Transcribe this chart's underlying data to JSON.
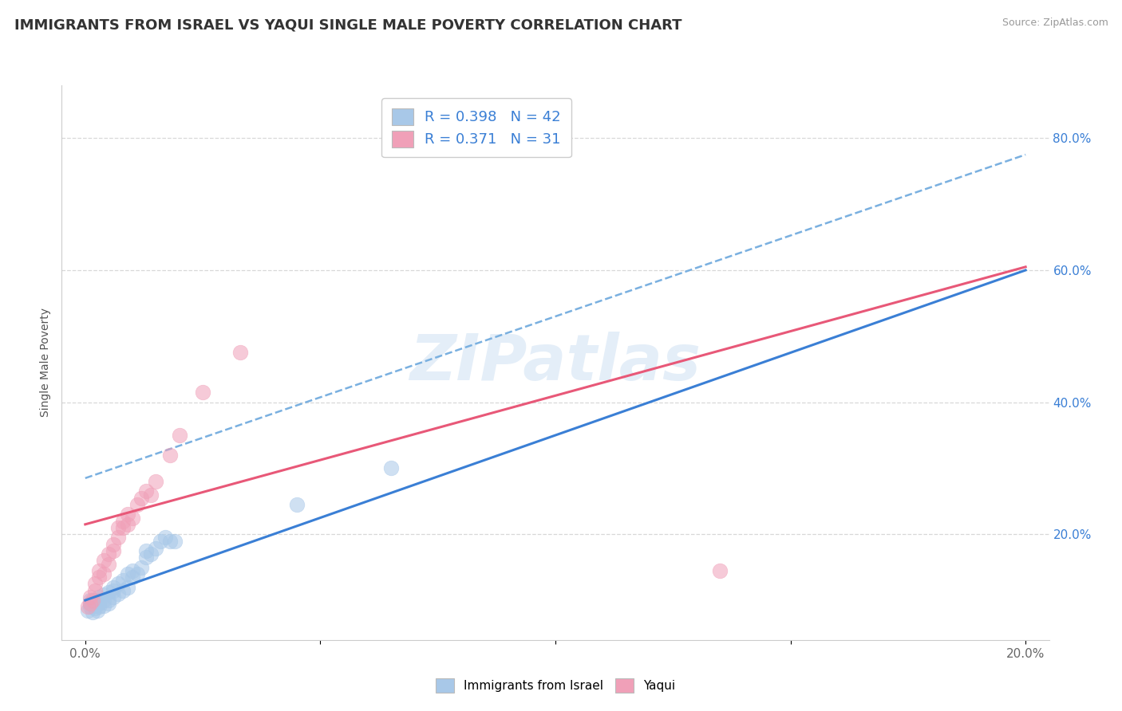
{
  "title": "IMMIGRANTS FROM ISRAEL VS YAQUI SINGLE MALE POVERTY CORRELATION CHART",
  "source_text": "Source: ZipAtlas.com",
  "ylabel": "Single Male Poverty",
  "watermark": "ZIPatlas",
  "xlim": [
    -0.005,
    0.205
  ],
  "ylim": [
    0.04,
    0.88
  ],
  "xticks": [
    0.0,
    0.05,
    0.1,
    0.15,
    0.2
  ],
  "xticklabels": [
    "0.0%",
    "",
    "",
    "",
    "20.0%"
  ],
  "yticks_right": [
    0.2,
    0.4,
    0.6,
    0.8
  ],
  "ytick_right_labels": [
    "20.0%",
    "40.0%",
    "60.0%",
    "80.0%"
  ],
  "legend1_label": "R = 0.398   N = 42",
  "legend2_label": "R = 0.371   N = 31",
  "legend_bottom_label1": "Immigrants from Israel",
  "legend_bottom_label2": "Yaqui",
  "blue_color": "#a8c8e8",
  "pink_color": "#f0a0b8",
  "blue_scatter": [
    [
      0.0005,
      0.085
    ],
    [
      0.001,
      0.09
    ],
    [
      0.001,
      0.1
    ],
    [
      0.001,
      0.095
    ],
    [
      0.0015,
      0.082
    ],
    [
      0.002,
      0.088
    ],
    [
      0.002,
      0.092
    ],
    [
      0.002,
      0.1
    ],
    [
      0.0025,
      0.085
    ],
    [
      0.003,
      0.09
    ],
    [
      0.003,
      0.095
    ],
    [
      0.003,
      0.1
    ],
    [
      0.003,
      0.105
    ],
    [
      0.004,
      0.092
    ],
    [
      0.004,
      0.1
    ],
    [
      0.004,
      0.108
    ],
    [
      0.005,
      0.095
    ],
    [
      0.005,
      0.1
    ],
    [
      0.005,
      0.112
    ],
    [
      0.006,
      0.105
    ],
    [
      0.006,
      0.115
    ],
    [
      0.006,
      0.12
    ],
    [
      0.007,
      0.11
    ],
    [
      0.007,
      0.125
    ],
    [
      0.008,
      0.115
    ],
    [
      0.008,
      0.13
    ],
    [
      0.009,
      0.12
    ],
    [
      0.009,
      0.14
    ],
    [
      0.01,
      0.135
    ],
    [
      0.01,
      0.145
    ],
    [
      0.011,
      0.14
    ],
    [
      0.012,
      0.15
    ],
    [
      0.013,
      0.165
    ],
    [
      0.013,
      0.175
    ],
    [
      0.014,
      0.17
    ],
    [
      0.015,
      0.178
    ],
    [
      0.016,
      0.19
    ],
    [
      0.017,
      0.195
    ],
    [
      0.018,
      0.19
    ],
    [
      0.019,
      0.19
    ],
    [
      0.045,
      0.245
    ],
    [
      0.065,
      0.3
    ]
  ],
  "pink_scatter": [
    [
      0.0005,
      0.09
    ],
    [
      0.001,
      0.095
    ],
    [
      0.001,
      0.105
    ],
    [
      0.0015,
      0.1
    ],
    [
      0.002,
      0.115
    ],
    [
      0.002,
      0.125
    ],
    [
      0.003,
      0.135
    ],
    [
      0.003,
      0.145
    ],
    [
      0.004,
      0.14
    ],
    [
      0.004,
      0.16
    ],
    [
      0.005,
      0.155
    ],
    [
      0.005,
      0.17
    ],
    [
      0.006,
      0.175
    ],
    [
      0.006,
      0.185
    ],
    [
      0.007,
      0.195
    ],
    [
      0.007,
      0.21
    ],
    [
      0.008,
      0.21
    ],
    [
      0.008,
      0.22
    ],
    [
      0.009,
      0.215
    ],
    [
      0.009,
      0.23
    ],
    [
      0.01,
      0.225
    ],
    [
      0.011,
      0.245
    ],
    [
      0.012,
      0.255
    ],
    [
      0.013,
      0.265
    ],
    [
      0.014,
      0.26
    ],
    [
      0.015,
      0.28
    ],
    [
      0.018,
      0.32
    ],
    [
      0.02,
      0.35
    ],
    [
      0.025,
      0.415
    ],
    [
      0.033,
      0.475
    ],
    [
      0.135,
      0.145
    ]
  ],
  "blue_line_x": [
    0.0,
    0.2
  ],
  "blue_line_y": [
    0.1,
    0.6
  ],
  "pink_line_x": [
    0.0,
    0.2
  ],
  "pink_line_y": [
    0.215,
    0.605
  ],
  "dashed_line_x": [
    0.0,
    0.2
  ],
  "dashed_line_y": [
    0.285,
    0.775
  ],
  "dashed_line_color": "#7ab0e0",
  "background_color": "#ffffff",
  "grid_color": "#d8d8d8",
  "title_fontsize": 13,
  "axis_label_fontsize": 10
}
